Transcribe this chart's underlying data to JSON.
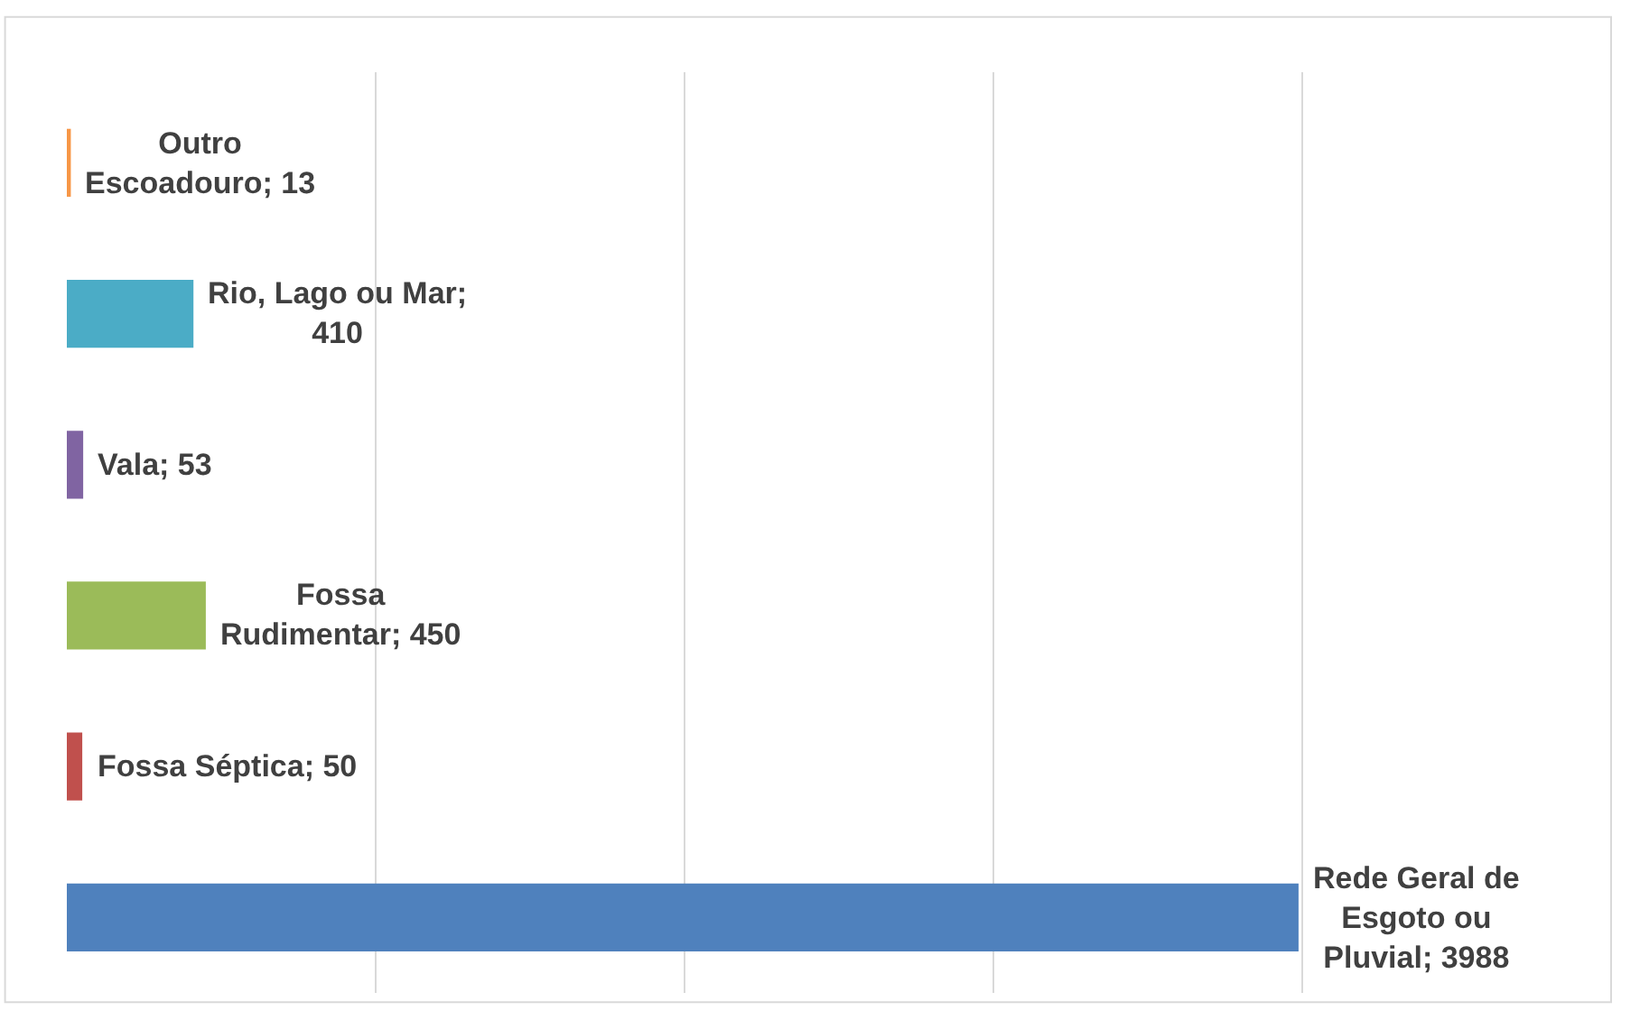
{
  "chart_data": {
    "type": "bar",
    "orientation": "horizontal",
    "categories": [
      null,
      null,
      null,
      null,
      null,
      null
    ],
    "values": [
      13,
      410,
      53,
      450,
      50,
      3988
    ],
    "colors": [
      "#f79646",
      "#4bacc6",
      "#8064a2",
      "#9bbb59",
      "#c0504d",
      "#4f81bd"
    ],
    "value_labels": [
      "Outro Escoadouro; 13",
      "Rio, Lago ou Mar; 410",
      "Vala; 53",
      "Fossa Rudimentar; 450",
      "Fossa Séptica; 50",
      "Rede Geral de Esgoto ou Pluvial; 3988"
    ],
    "xlim": [
      0,
      5000
    ],
    "grid": "x",
    "legend": false,
    "tick_labels": false
  }
}
